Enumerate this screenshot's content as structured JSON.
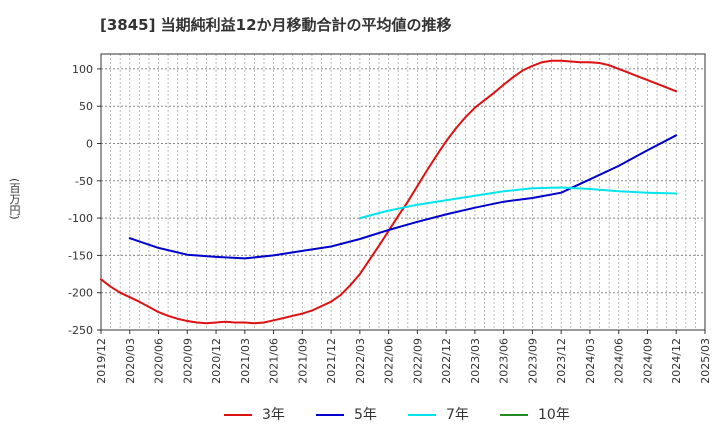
{
  "chart_data": {
    "type": "line",
    "title": "[3845]  当期純利益12か月移動合計の平均値の推移",
    "ylabel": "(百万円)",
    "xlabel": "",
    "ylim": [
      -250,
      120
    ],
    "yticks": [
      100,
      50,
      0,
      -50,
      -100,
      -150,
      -200,
      -250
    ],
    "xticks": [
      "2019/12",
      "2020/03",
      "2020/06",
      "2020/09",
      "2020/12",
      "2021/03",
      "2021/06",
      "2021/09",
      "2021/12",
      "2022/03",
      "2022/06",
      "2022/09",
      "2022/12",
      "2023/03",
      "2023/06",
      "2023/09",
      "2023/12",
      "2024/03",
      "2024/06",
      "2024/09",
      "2024/12",
      "2025/03"
    ],
    "grid": true,
    "legend_position": "bottom",
    "series": [
      {
        "name": "3年",
        "color": "#dd1111",
        "x": [
          "2019/12",
          "2020/01",
          "2020/02",
          "2020/03",
          "2020/04",
          "2020/05",
          "2020/06",
          "2020/07",
          "2020/08",
          "2020/09",
          "2020/10",
          "2020/11",
          "2020/12",
          "2021/01",
          "2021/02",
          "2021/03",
          "2021/04",
          "2021/05",
          "2021/06",
          "2021/07",
          "2021/08",
          "2021/09",
          "2021/10",
          "2021/11",
          "2021/12",
          "2022/01",
          "2022/02",
          "2022/03",
          "2022/04",
          "2022/05",
          "2022/06",
          "2022/07",
          "2022/08",
          "2022/09",
          "2022/10",
          "2022/11",
          "2022/12",
          "2023/01",
          "2023/02",
          "2023/03",
          "2023/04",
          "2023/05",
          "2023/06",
          "2023/07",
          "2023/08",
          "2023/09",
          "2023/10",
          "2023/11",
          "2023/12",
          "2024/01",
          "2024/02",
          "2024/03",
          "2024/04",
          "2024/05",
          "2024/06",
          "2024/07",
          "2024/08",
          "2024/09",
          "2024/10",
          "2024/11",
          "2024/12"
        ],
        "values": [
          -182,
          -192,
          -200,
          -206,
          -212,
          -219,
          -226,
          -231,
          -235,
          -238,
          -240,
          -241,
          -240,
          -239,
          -240,
          -240,
          -241,
          -240,
          -237,
          -234,
          -231,
          -228,
          -224,
          -218,
          -212,
          -203,
          -190,
          -175,
          -156,
          -137,
          -117,
          -97,
          -78,
          -57,
          -36,
          -16,
          3,
          20,
          35,
          48,
          58,
          68,
          79,
          89,
          98,
          104,
          109,
          111,
          111,
          110,
          109,
          109,
          108,
          105,
          100,
          95,
          90,
          85,
          80,
          75,
          70
        ],
        "values_note": ""
      },
      {
        "name": "5年",
        "color": "#0000cc",
        "x": [
          "2020/03",
          "2020/06",
          "2020/09",
          "2020/12",
          "2021/03",
          "2021/06",
          "2021/09",
          "2021/12",
          "2022/03",
          "2022/06",
          "2022/09",
          "2022/12",
          "2023/03",
          "2023/06",
          "2023/09",
          "2023/12",
          "2024/03",
          "2024/06",
          "2024/09",
          "2024/12"
        ],
        "values": [
          -127,
          -140,
          -149,
          -152,
          -154,
          -150,
          -144,
          -138,
          -128,
          -116,
          -105,
          -95,
          -86,
          -78,
          -73,
          -66,
          -48,
          -30,
          -9,
          11
        ]
      },
      {
        "name": "7年",
        "color": "#00e5ee",
        "x": [
          "2022/03",
          "2022/06",
          "2022/09",
          "2022/12",
          "2023/03",
          "2023/06",
          "2023/09",
          "2023/12",
          "2024/03",
          "2024/06",
          "2024/09",
          "2024/12"
        ],
        "values": [
          -100,
          -90,
          -82,
          -76,
          -70,
          -64,
          -60,
          -59,
          -61,
          -64,
          -66,
          -67
        ]
      },
      {
        "name": "10年",
        "color": "#228b22",
        "x": [],
        "values": []
      }
    ]
  }
}
